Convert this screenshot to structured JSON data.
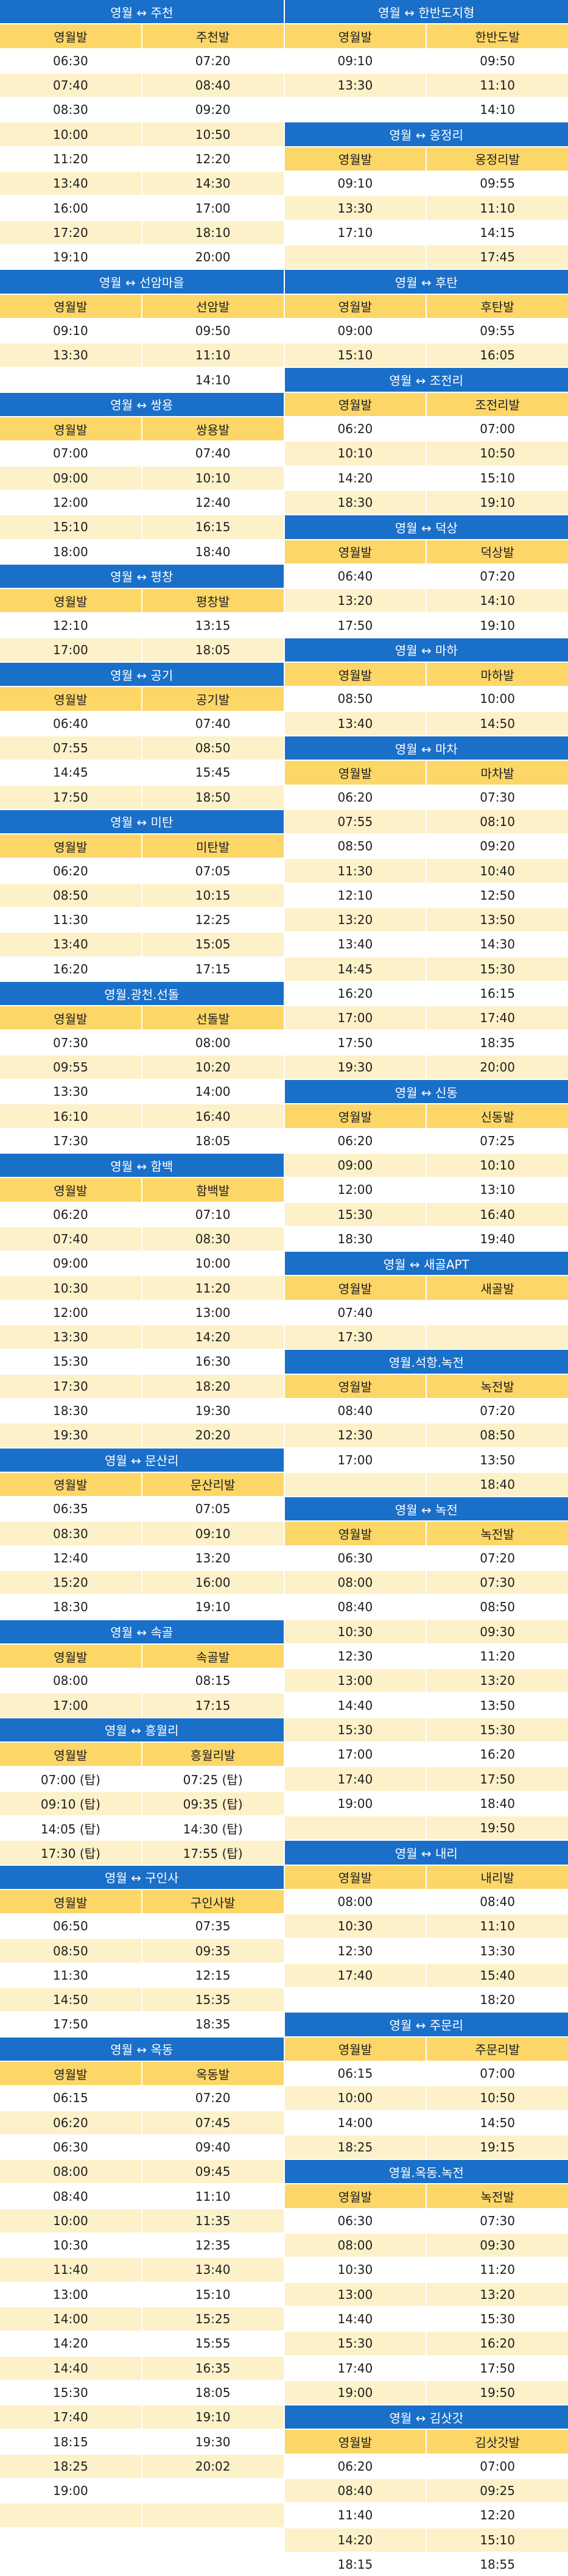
{
  "columns": [
    [
      {
        "title": "영월 ↔ 주천",
        "headers": [
          "영월발",
          "주천발"
        ],
        "rows": [
          [
            "06:30",
            "07:20"
          ],
          [
            "07:40",
            "08:40"
          ],
          [
            "08:30",
            "09:20"
          ],
          [
            "10:00",
            "10:50"
          ],
          [
            "11:20",
            "12:20"
          ],
          [
            "13:40",
            "14:30"
          ],
          [
            "16:00",
            "17:00"
          ],
          [
            "17:20",
            "18:10"
          ],
          [
            "19:10",
            "20:00"
          ]
        ]
      },
      {
        "title": "영월 ↔ 선암마을",
        "headers": [
          "영월발",
          "선암발"
        ],
        "rows": [
          [
            "09:10",
            "09:50"
          ],
          [
            "13:30",
            "11:10"
          ],
          [
            "",
            "14:10"
          ]
        ]
      },
      {
        "title": "영월 ↔ 쌍용",
        "headers": [
          "영월발",
          "쌍용발"
        ],
        "rows": [
          [
            "07:00",
            "07:40"
          ],
          [
            "09:00",
            "10:10"
          ],
          [
            "12:00",
            "12:40"
          ],
          [
            "15:10",
            "16:15"
          ],
          [
            "18:00",
            "18:40"
          ]
        ]
      },
      {
        "title": "영월 ↔ 평창",
        "headers": [
          "영월발",
          "평창발"
        ],
        "rows": [
          [
            "12:10",
            "13:15"
          ],
          [
            "17:00",
            "18:05"
          ]
        ]
      },
      {
        "title": "영월 ↔ 공기",
        "headers": [
          "영월발",
          "공기발"
        ],
        "rows": [
          [
            "06:40",
            "07:40"
          ],
          [
            "07:55",
            "08:50"
          ],
          [
            "14:45",
            "15:45"
          ],
          [
            "17:50",
            "18:50"
          ]
        ]
      },
      {
        "title": "영월 ↔ 미탄",
        "headers": [
          "영월발",
          "미탄발"
        ],
        "rows": [
          [
            "06:20",
            "07:05"
          ],
          [
            "08:50",
            "10:15"
          ],
          [
            "11:30",
            "12:25"
          ],
          [
            "13:40",
            "15:05"
          ],
          [
            "16:20",
            "17:15"
          ]
        ]
      },
      {
        "title": "영월.광천.선돌",
        "headers": [
          "영월발",
          "선돌발"
        ],
        "rows": [
          [
            "07:30",
            "08:00"
          ],
          [
            "09:55",
            "10:20"
          ],
          [
            "13:30",
            "14:00"
          ],
          [
            "16:10",
            "16:40"
          ],
          [
            "17:30",
            "18:05"
          ]
        ]
      },
      {
        "title": "영월 ↔ 함백",
        "headers": [
          "영월발",
          "함백발"
        ],
        "rows": [
          [
            "06:20",
            "07:10"
          ],
          [
            "07:40",
            "08:30"
          ],
          [
            "09:00",
            "10:00"
          ],
          [
            "10:30",
            "11:20"
          ],
          [
            "12:00",
            "13:00"
          ],
          [
            "13:30",
            "14:20"
          ],
          [
            "15:30",
            "16:30"
          ],
          [
            "17:30",
            "18:20"
          ],
          [
            "18:30",
            "19:30"
          ],
          [
            "19:30",
            "20:20"
          ]
        ]
      },
      {
        "title": "영월 ↔ 문산리",
        "headers": [
          "영월발",
          "문산리발"
        ],
        "rows": [
          [
            "06:35",
            "07:05"
          ],
          [
            "08:30",
            "09:10"
          ],
          [
            "12:40",
            "13:20"
          ],
          [
            "15:20",
            "16:00"
          ],
          [
            "18:30",
            "19:10"
          ]
        ]
      },
      {
        "title": "영월 ↔ 속골",
        "headers": [
          "영월발",
          "속골발"
        ],
        "rows": [
          [
            "08:00",
            "08:15"
          ],
          [
            "17:00",
            "17:15"
          ]
        ]
      },
      {
        "title": "영월 ↔ 흥월리",
        "headers": [
          "영월발",
          "흥월리발"
        ],
        "rows": [
          [
            "07:00 (탑)",
            "07:25 (탑)"
          ],
          [
            "09:10 (탑)",
            "09:35 (탑)"
          ],
          [
            "14:05 (탑)",
            "14:30 (탑)"
          ],
          [
            "17:30 (탑)",
            "17:55 (탑)"
          ]
        ]
      },
      {
        "title": "영월 ↔ 구인사",
        "headers": [
          "영월발",
          "구인사발"
        ],
        "rows": [
          [
            "06:50",
            "07:35"
          ],
          [
            "08:50",
            "09:35"
          ],
          [
            "11:30",
            "12:15"
          ],
          [
            "14:50",
            "15:35"
          ],
          [
            "17:50",
            "18:35"
          ]
        ]
      },
      {
        "title": "영월 ↔ 옥동",
        "headers": [
          "영월발",
          "옥동발"
        ],
        "rows": [
          [
            "06:15",
            "07:20"
          ],
          [
            "06:20",
            "07:45"
          ],
          [
            "06:30",
            "09:40"
          ],
          [
            "08:00",
            "09:45"
          ],
          [
            "08:40",
            "11:10"
          ],
          [
            "10:00",
            "11:35"
          ],
          [
            "10:30",
            "12:35"
          ],
          [
            "11:40",
            "13:40"
          ],
          [
            "13:00",
            "15:10"
          ],
          [
            "14:00",
            "15:25"
          ],
          [
            "14:20",
            "15:55"
          ],
          [
            "14:40",
            "16:35"
          ],
          [
            "15:30",
            "18:05"
          ],
          [
            "17:40",
            "19:10"
          ],
          [
            "18:15",
            "19:30"
          ],
          [
            "18:25",
            "20:02"
          ],
          [
            "19:00",
            ""
          ],
          [
            "",
            ""
          ],
          [
            "",
            ""
          ]
        ]
      }
    ],
    [
      {
        "title": "영월 ↔ 한반도지형",
        "headers": [
          "영월발",
          "한반도발"
        ],
        "rows": [
          [
            "09:10",
            "09:50"
          ],
          [
            "13:30",
            "11:10"
          ],
          [
            "",
            "14:10"
          ]
        ]
      },
      {
        "title": "영월 ↔ 옹정리",
        "headers": [
          "영월발",
          "옹정리발"
        ],
        "rows": [
          [
            "09:10",
            "09:55"
          ],
          [
            "13:30",
            "11:10"
          ],
          [
            "17:10",
            "14:15"
          ],
          [
            "",
            "17:45"
          ]
        ]
      },
      {
        "title": "영월 ↔ 후탄",
        "headers": [
          "영월발",
          "후탄발"
        ],
        "rows": [
          [
            "09:00",
            "09:55"
          ],
          [
            "15:10",
            "16:05"
          ]
        ]
      },
      {
        "title": "영월 ↔ 조전리",
        "headers": [
          "영월발",
          "조전리발"
        ],
        "rows": [
          [
            "06:20",
            "07:00"
          ],
          [
            "10:10",
            "10:50"
          ],
          [
            "14:20",
            "15:10"
          ],
          [
            "18:30",
            "19:10"
          ]
        ]
      },
      {
        "title": "영월 ↔ 덕상",
        "headers": [
          "영월발",
          "덕상발"
        ],
        "rows": [
          [
            "06:40",
            "07:20"
          ],
          [
            "13:20",
            "14:10"
          ],
          [
            "17:50",
            "19:10"
          ]
        ]
      },
      {
        "title": "영월 ↔ 마하",
        "headers": [
          "영월발",
          "마하발"
        ],
        "rows": [
          [
            "08:50",
            "10:00"
          ],
          [
            "13:40",
            "14:50"
          ]
        ]
      },
      {
        "title": "영월 ↔ 마차",
        "headers": [
          "영월발",
          "마차발"
        ],
        "rows": [
          [
            "06:20",
            "07:30"
          ],
          [
            "07:55",
            "08:10"
          ],
          [
            "08:50",
            "09:20"
          ],
          [
            "11:30",
            "10:40"
          ],
          [
            "12:10",
            "12:50"
          ],
          [
            "13:20",
            "13:50"
          ],
          [
            "13:40",
            "14:30"
          ],
          [
            "14:45",
            "15:30"
          ],
          [
            "16:20",
            "16:15"
          ],
          [
            "17:00",
            "17:40"
          ],
          [
            "17:50",
            "18:35"
          ],
          [
            "19:30",
            "20:00"
          ]
        ]
      },
      {
        "title": "영월 ↔ 신동",
        "headers": [
          "영월발",
          "신동발"
        ],
        "rows": [
          [
            "06:20",
            "07:25"
          ],
          [
            "09:00",
            "10:10"
          ],
          [
            "12:00",
            "13:10"
          ],
          [
            "15:30",
            "16:40"
          ],
          [
            "18:30",
            "19:40"
          ]
        ]
      },
      {
        "title": "영월 ↔ 새골APT",
        "headers": [
          "영월발",
          "새골발"
        ],
        "rows": [
          [
            "07:40",
            ""
          ],
          [
            "17:30",
            ""
          ]
        ]
      },
      {
        "title": "영월.석항.녹전",
        "headers": [
          "영월발",
          "녹전발"
        ],
        "rows": [
          [
            "08:40",
            "07:20"
          ],
          [
            "12:30",
            "08:50"
          ],
          [
            "17:00",
            "13:50"
          ],
          [
            "",
            "18:40"
          ]
        ]
      },
      {
        "title": "영월 ↔ 녹전",
        "headers": [
          "영월발",
          "녹전발"
        ],
        "rows": [
          [
            "06:30",
            "07:20"
          ],
          [
            "08:00",
            "07:30"
          ],
          [
            "08:40",
            "08:50"
          ],
          [
            "10:30",
            "09:30"
          ],
          [
            "12:30",
            "11:20"
          ],
          [
            "13:00",
            "13:20"
          ],
          [
            "14:40",
            "13:50"
          ],
          [
            "15:30",
            "15:30"
          ],
          [
            "17:00",
            "16:20"
          ],
          [
            "17:40",
            "17:50"
          ],
          [
            "19:00",
            "18:40"
          ],
          [
            "",
            "19:50"
          ]
        ]
      },
      {
        "title": "영월 ↔ 내리",
        "headers": [
          "영월발",
          "내리발"
        ],
        "rows": [
          [
            "08:00",
            "08:40"
          ],
          [
            "10:30",
            "11:10"
          ],
          [
            "12:30",
            "13:30"
          ],
          [
            "17:40",
            "15:40"
          ],
          [
            "",
            "18:20"
          ]
        ]
      },
      {
        "title": "영월 ↔ 주문리",
        "headers": [
          "영월발",
          "주문리발"
        ],
        "rows": [
          [
            "06:15",
            "07:00"
          ],
          [
            "10:00",
            "10:50"
          ],
          [
            "14:00",
            "14:50"
          ],
          [
            "18:25",
            "19:15"
          ]
        ]
      },
      {
        "title": "영월.옥동.녹전",
        "headers": [
          "영월발",
          "녹전발"
        ],
        "rows": [
          [
            "06:30",
            "07:30"
          ],
          [
            "08:00",
            "09:30"
          ],
          [
            "10:30",
            "11:20"
          ],
          [
            "13:00",
            "13:20"
          ],
          [
            "14:40",
            "15:30"
          ],
          [
            "15:30",
            "16:20"
          ],
          [
            "17:40",
            "17:50"
          ],
          [
            "19:00",
            "19:50"
          ]
        ]
      },
      {
        "title": "영월 ↔ 김삿갓",
        "headers": [
          "영월발",
          "김삿갓발"
        ],
        "rows": [
          [
            "06:20",
            "07:00"
          ],
          [
            "08:40",
            "09:25"
          ],
          [
            "11:40",
            "12:20"
          ],
          [
            "14:20",
            "15:10"
          ],
          [
            "18:15",
            "18:55"
          ]
        ]
      }
    ]
  ]
}
